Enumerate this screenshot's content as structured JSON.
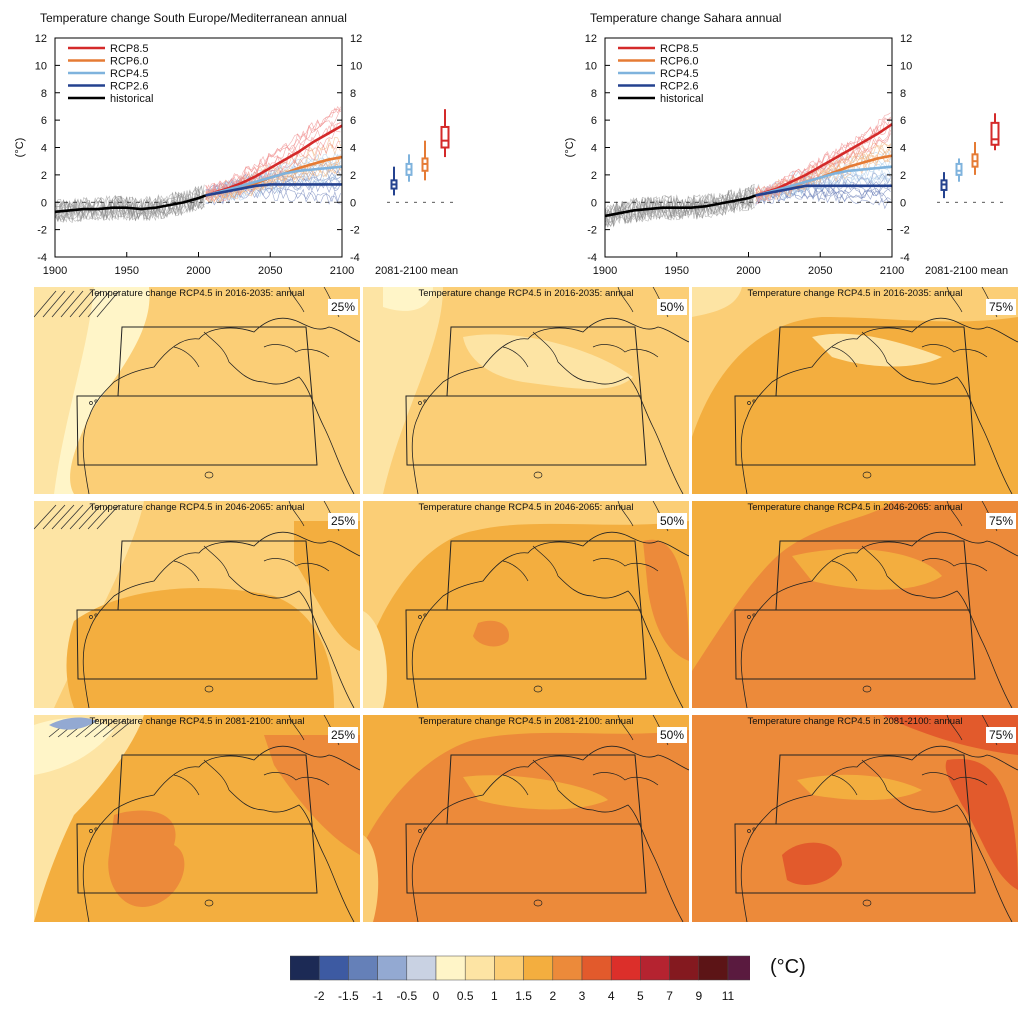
{
  "timeseries": [
    {
      "title": "Temperature change South Europe/Mediterranean annual",
      "ylabel": "(°C)",
      "box_label": "2081-2100 mean",
      "legend": [
        "RCP8.5",
        "RCP6.0",
        "RCP4.5",
        "RCP2.6",
        "historical"
      ],
      "yticks": [
        "12",
        "10",
        "8",
        "6",
        "4",
        "2",
        "0",
        "-2",
        "-4"
      ],
      "xticks": [
        "1900",
        "1950",
        "2000",
        "2050",
        "2100"
      ]
    },
    {
      "title": "Temperature change Sahara annual",
      "ylabel": "(°C)",
      "box_label": "2081-2100 mean",
      "legend": [
        "RCP8.5",
        "RCP6.0",
        "RCP4.5",
        "RCP2.6",
        "historical"
      ],
      "yticks": [
        "12",
        "10",
        "8",
        "6",
        "4",
        "2",
        "0",
        "-2",
        "-4"
      ],
      "xticks": [
        "1900",
        "1950",
        "2000",
        "2050",
        "2100"
      ]
    }
  ],
  "maps": {
    "row_titles": [
      "Temperature change RCP4.5 in 2016-2035: annual",
      "Temperature change RCP4.5 in 2046-2065: annual",
      "Temperature change RCP4.5 in 2081-2100: annual"
    ],
    "percentiles": [
      "25%",
      "50%",
      "75%"
    ]
  },
  "colorbar": {
    "unit": "(°C)",
    "labels": [
      "-2",
      "-1.5",
      "-1",
      "-0.5",
      "0",
      "0.5",
      "1",
      "1.5",
      "2",
      "3",
      "4",
      "5",
      "7",
      "9",
      "11"
    ],
    "colors": [
      "#1c2a55",
      "#3d5aa2",
      "#6580b8",
      "#93a9d2",
      "#c9d2e3",
      "#fff5c8",
      "#fde4a4",
      "#fbce76",
      "#f3ae3f",
      "#ec8a3a",
      "#e25a2c",
      "#dc2f2a",
      "#b52330",
      "#84191f",
      "#5c1416",
      "#5a1a3f"
    ]
  },
  "chart_data": [
    {
      "type": "line",
      "title": "Temperature change South Europe/Mediterranean annual",
      "ylabel": "(°C)",
      "xlim": [
        1900,
        2100
      ],
      "ylim": [
        -4,
        12
      ],
      "series": [
        {
          "name": "historical",
          "color": "#000000",
          "x": [
            1900,
            1910,
            1920,
            1930,
            1940,
            1950,
            1960,
            1970,
            1980,
            1990,
            2000,
            2005
          ],
          "values": [
            -0.7,
            -0.6,
            -0.5,
            -0.5,
            -0.4,
            -0.4,
            -0.5,
            -0.4,
            -0.2,
            0.0,
            0.3,
            0.5
          ]
        },
        {
          "name": "RCP2.6",
          "color": "#24428f",
          "x": [
            2005,
            2020,
            2030,
            2040,
            2050,
            2060,
            2070,
            2080,
            2090,
            2100
          ],
          "values": [
            0.5,
            0.8,
            1.0,
            1.2,
            1.3,
            1.3,
            1.3,
            1.3,
            1.3,
            1.3
          ]
        },
        {
          "name": "RCP4.5",
          "color": "#7fb3dd",
          "x": [
            2005,
            2020,
            2030,
            2040,
            2050,
            2060,
            2070,
            2080,
            2090,
            2100
          ],
          "values": [
            0.5,
            0.9,
            1.2,
            1.5,
            1.8,
            2.1,
            2.3,
            2.4,
            2.5,
            2.6
          ]
        },
        {
          "name": "RCP6.0",
          "color": "#e57b35",
          "x": [
            2005,
            2020,
            2030,
            2040,
            2050,
            2060,
            2070,
            2080,
            2090,
            2100
          ],
          "values": [
            0.5,
            0.8,
            1.1,
            1.4,
            1.8,
            2.1,
            2.5,
            2.8,
            3.1,
            3.3
          ]
        },
        {
          "name": "RCP8.5",
          "color": "#d42a2a",
          "x": [
            2005,
            2020,
            2030,
            2040,
            2050,
            2060,
            2070,
            2080,
            2090,
            2100
          ],
          "values": [
            0.5,
            1.0,
            1.4,
            1.9,
            2.5,
            3.1,
            3.7,
            4.4,
            5.0,
            5.6
          ]
        }
      ],
      "boxes": [
        {
          "name": "RCP2.6",
          "color": "#24428f",
          "min": 0.5,
          "q1": 1.0,
          "median": 1.3,
          "q3": 1.6,
          "max": 2.6
        },
        {
          "name": "RCP4.5",
          "color": "#7fb3dd",
          "min": 1.5,
          "q1": 2.0,
          "median": 2.4,
          "q3": 2.8,
          "max": 3.5
        },
        {
          "name": "RCP6.0",
          "color": "#e57b35",
          "min": 1.6,
          "q1": 2.3,
          "median": 2.8,
          "q3": 3.2,
          "max": 4.5
        },
        {
          "name": "RCP8.5",
          "color": "#d42a2a",
          "min": 3.3,
          "q1": 4.0,
          "median": 4.5,
          "q3": 5.5,
          "max": 6.8
        }
      ]
    },
    {
      "type": "line",
      "title": "Temperature change Sahara annual",
      "ylabel": "(°C)",
      "xlim": [
        1900,
        2100
      ],
      "ylim": [
        -4,
        12
      ],
      "series": [
        {
          "name": "historical",
          "color": "#000000",
          "x": [
            1900,
            1910,
            1920,
            1930,
            1940,
            1950,
            1960,
            1970,
            1980,
            1990,
            2000,
            2005
          ],
          "values": [
            -1.0,
            -0.8,
            -0.6,
            -0.5,
            -0.4,
            -0.4,
            -0.4,
            -0.3,
            -0.1,
            0.1,
            0.3,
            0.5
          ]
        },
        {
          "name": "RCP2.6",
          "color": "#24428f",
          "x": [
            2005,
            2020,
            2030,
            2040,
            2050,
            2060,
            2070,
            2080,
            2090,
            2100
          ],
          "values": [
            0.5,
            0.8,
            1.0,
            1.2,
            1.2,
            1.2,
            1.2,
            1.2,
            1.2,
            1.2
          ]
        },
        {
          "name": "RCP4.5",
          "color": "#7fb3dd",
          "x": [
            2005,
            2020,
            2030,
            2040,
            2050,
            2060,
            2070,
            2080,
            2090,
            2100
          ],
          "values": [
            0.5,
            0.9,
            1.2,
            1.5,
            1.8,
            2.1,
            2.3,
            2.4,
            2.5,
            2.6
          ]
        },
        {
          "name": "RCP6.0",
          "color": "#e57b35",
          "x": [
            2005,
            2020,
            2030,
            2040,
            2050,
            2060,
            2070,
            2080,
            2090,
            2100
          ],
          "values": [
            0.5,
            0.8,
            1.1,
            1.5,
            1.8,
            2.2,
            2.6,
            2.9,
            3.2,
            3.4
          ]
        },
        {
          "name": "RCP8.5",
          "color": "#d42a2a",
          "x": [
            2005,
            2020,
            2030,
            2040,
            2050,
            2060,
            2070,
            2080,
            2090,
            2100
          ],
          "values": [
            0.5,
            1.0,
            1.5,
            2.0,
            2.6,
            3.2,
            3.8,
            4.4,
            5.0,
            5.7
          ]
        }
      ],
      "boxes": [
        {
          "name": "RCP2.6",
          "color": "#24428f",
          "min": 0.3,
          "q1": 0.9,
          "median": 1.3,
          "q3": 1.6,
          "max": 2.2
        },
        {
          "name": "RCP4.5",
          "color": "#7fb3dd",
          "min": 1.5,
          "q1": 2.0,
          "median": 2.3,
          "q3": 2.8,
          "max": 3.2
        },
        {
          "name": "RCP6.0",
          "color": "#e57b35",
          "min": 2.0,
          "q1": 2.6,
          "median": 3.0,
          "q3": 3.5,
          "max": 4.4
        },
        {
          "name": "RCP8.5",
          "color": "#d42a2a",
          "min": 3.8,
          "q1": 4.2,
          "median": 4.6,
          "q3": 5.8,
          "max": 6.5
        }
      ]
    }
  ]
}
